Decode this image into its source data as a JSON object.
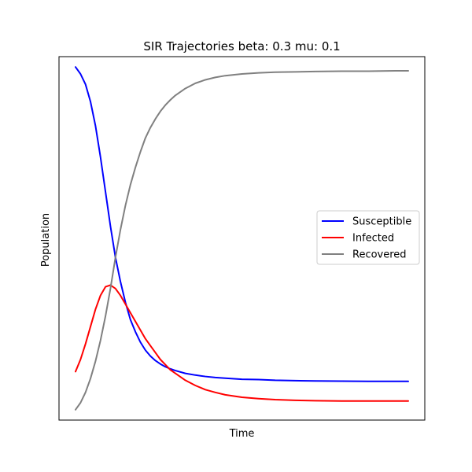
{
  "chart_data": {
    "type": "line",
    "title": "SIR Trajectories beta: 0.3 mu: 0.1",
    "xlabel": "Time",
    "ylabel": "Population",
    "x_ticks_visible": false,
    "y_ticks_visible": false,
    "grid": false,
    "legend_position": "center-right",
    "xlim": [
      0,
      100
    ],
    "ylim": [
      -0.03,
      1.02
    ],
    "x": [
      0,
      1.5,
      3,
      4.5,
      6,
      7.5,
      9,
      10.5,
      12,
      13.5,
      15,
      16.5,
      18,
      19.5,
      21,
      22.5,
      24,
      25.5,
      27,
      28.5,
      30,
      33,
      36,
      39,
      42,
      45,
      50,
      55,
      60,
      66,
      72,
      80,
      88,
      96,
      100
    ],
    "series": [
      {
        "name": "Susceptible",
        "color": "#0000ff",
        "values": [
          0.99,
          0.97,
          0.94,
          0.89,
          0.82,
          0.73,
          0.63,
          0.53,
          0.44,
          0.37,
          0.31,
          0.26,
          0.225,
          0.195,
          0.172,
          0.155,
          0.142,
          0.132,
          0.124,
          0.118,
          0.113,
          0.105,
          0.1,
          0.096,
          0.093,
          0.091,
          0.088,
          0.087,
          0.085,
          0.084,
          0.083,
          0.0825,
          0.082,
          0.082,
          0.082
        ]
      },
      {
        "name": "Infected",
        "color": "#ff0000",
        "values": [
          0.11,
          0.145,
          0.19,
          0.24,
          0.29,
          0.33,
          0.355,
          0.36,
          0.35,
          0.33,
          0.305,
          0.28,
          0.255,
          0.23,
          0.205,
          0.185,
          0.165,
          0.145,
          0.13,
          0.115,
          0.105,
          0.085,
          0.07,
          0.058,
          0.05,
          0.043,
          0.036,
          0.032,
          0.029,
          0.027,
          0.026,
          0.025,
          0.025,
          0.025,
          0.025
        ]
      },
      {
        "name": "Recovered",
        "color": "#808080",
        "values": [
          0.0,
          0.02,
          0.05,
          0.09,
          0.14,
          0.2,
          0.27,
          0.35,
          0.44,
          0.52,
          0.59,
          0.65,
          0.7,
          0.745,
          0.785,
          0.815,
          0.84,
          0.862,
          0.88,
          0.895,
          0.908,
          0.928,
          0.943,
          0.953,
          0.96,
          0.965,
          0.97,
          0.973,
          0.975,
          0.976,
          0.977,
          0.978,
          0.978,
          0.979,
          0.979
        ]
      }
    ]
  }
}
